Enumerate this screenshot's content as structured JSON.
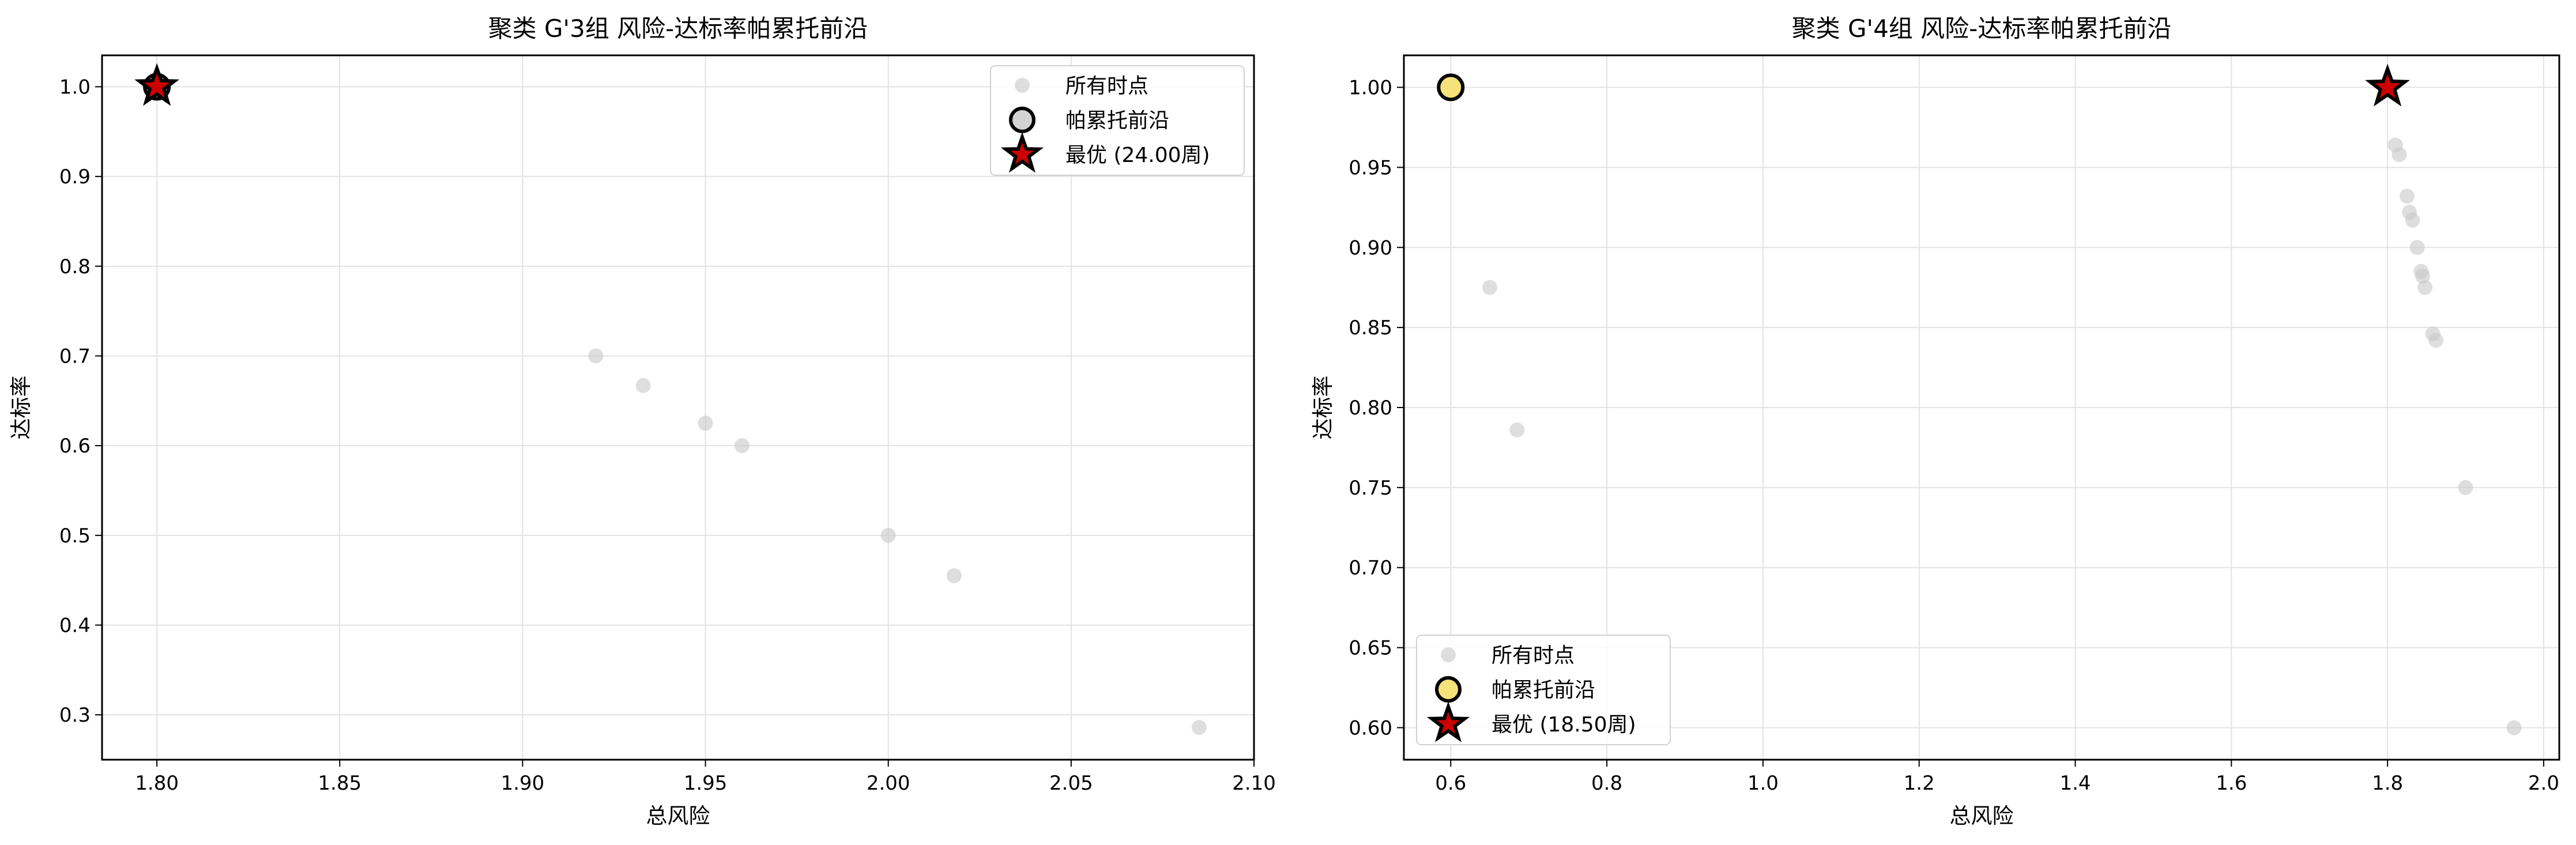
{
  "chart_data": [
    {
      "type": "scatter",
      "title": "聚类 G'3组 风险-达标率帕累托前沿",
      "xlabel": "总风险",
      "ylabel": "达标率",
      "xlim": [
        1.785,
        2.1
      ],
      "ylim": [
        0.25,
        1.035
      ],
      "xticks": [
        1.8,
        1.85,
        1.9,
        1.95,
        2.0,
        2.05,
        2.1
      ],
      "xtick_labels": [
        "1.80",
        "1.85",
        "1.90",
        "1.95",
        "2.00",
        "2.05",
        "2.10"
      ],
      "yticks": [
        0.3,
        0.4,
        0.5,
        0.6,
        0.7,
        0.8,
        0.9,
        1.0
      ],
      "ytick_labels": [
        "0.3",
        "0.4",
        "0.5",
        "0.6",
        "0.7",
        "0.8",
        "0.9",
        "1.0"
      ],
      "grid": true,
      "legend_position": "top-right",
      "series": [
        {
          "name": "所有时点",
          "kind": "all",
          "color": "#c8c8c8",
          "x": [
            1.8,
            1.92,
            1.933,
            1.95,
            1.96,
            2.0,
            2.018,
            2.085
          ],
          "y": [
            1.0,
            0.7,
            0.667,
            0.625,
            0.6,
            0.5,
            0.455,
            0.286
          ]
        },
        {
          "name": "帕累托前沿",
          "kind": "pareto",
          "color": "#d3d3d3",
          "x": [
            1.8
          ],
          "y": [
            1.0
          ]
        },
        {
          "name": "最优 (24.00周)",
          "kind": "best",
          "color": "#cc0000",
          "x": [
            1.8
          ],
          "y": [
            1.0
          ]
        }
      ]
    },
    {
      "type": "scatter",
      "title": "聚类 G'4组 风险-达标率帕累托前沿",
      "xlabel": "总风险",
      "ylabel": "达标率",
      "xlim": [
        0.54,
        2.02
      ],
      "ylim": [
        0.58,
        1.02
      ],
      "xticks": [
        0.6,
        0.8,
        1.0,
        1.2,
        1.4,
        1.6,
        1.8,
        2.0
      ],
      "xtick_labels": [
        "0.6",
        "0.8",
        "1.0",
        "1.2",
        "1.4",
        "1.6",
        "1.8",
        "2.0"
      ],
      "yticks": [
        0.6,
        0.65,
        0.7,
        0.75,
        0.8,
        0.85,
        0.9,
        0.95,
        1.0
      ],
      "ytick_labels": [
        "0.60",
        "0.65",
        "0.70",
        "0.75",
        "0.80",
        "0.85",
        "0.90",
        "0.95",
        "1.00"
      ],
      "grid": true,
      "legend_position": "bottom-left",
      "series": [
        {
          "name": "所有时点",
          "kind": "all",
          "color": "#c8c8c8",
          "x": [
            0.6,
            0.65,
            0.685,
            1.8,
            1.81,
            1.815,
            1.825,
            1.828,
            1.832,
            1.838,
            1.843,
            1.845,
            1.848,
            1.858,
            1.862,
            1.9,
            1.962
          ],
          "y": [
            1.0,
            0.875,
            0.786,
            1.0,
            0.964,
            0.958,
            0.932,
            0.922,
            0.917,
            0.9,
            0.885,
            0.882,
            0.875,
            0.846,
            0.842,
            0.75,
            0.6
          ]
        },
        {
          "name": "帕累托前沿",
          "kind": "pareto",
          "color": "#f5e27a",
          "x": [
            0.6
          ],
          "y": [
            1.0
          ]
        },
        {
          "name": "最优 (18.50周)",
          "kind": "best",
          "color": "#cc0000",
          "x": [
            1.8
          ],
          "y": [
            1.0
          ]
        }
      ]
    }
  ]
}
